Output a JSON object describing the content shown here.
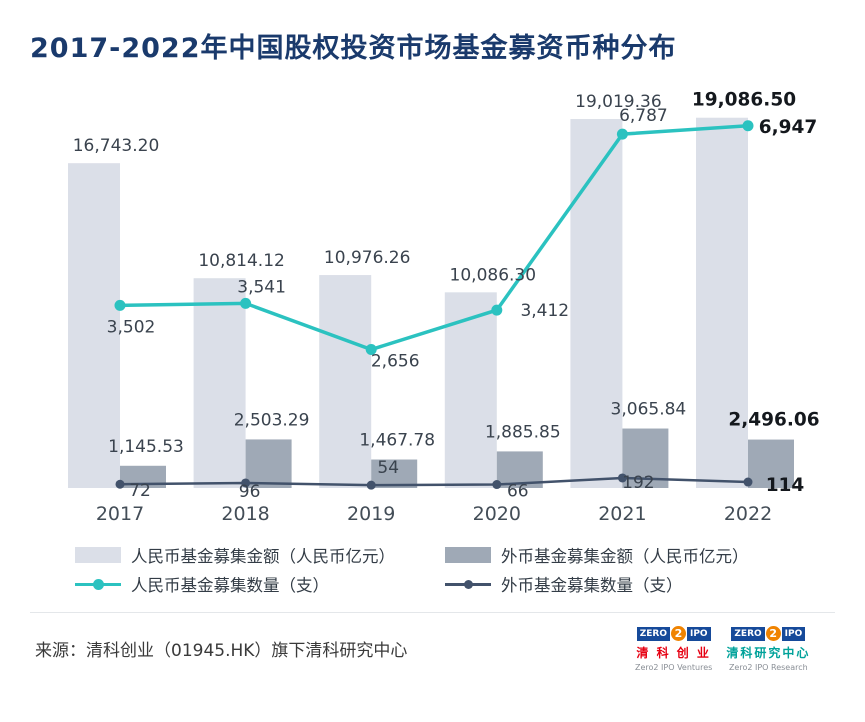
{
  "title": "2017-2022年中国股权投资市场基金募资币种分布",
  "colors": {
    "title": "#1a3a6c",
    "rmb_bar": "#dbdfe8",
    "fx_bar": "#9fa9b6",
    "rmb_line": "#2bc2c0",
    "fx_line": "#42526b"
  },
  "chart_data": {
    "type": "combo-bar-line",
    "categories": [
      "2017",
      "2018",
      "2019",
      "2020",
      "2021",
      "2022"
    ],
    "bar_series": [
      {
        "name": "人民币基金募集金额（人民币亿元）",
        "values": [
          16743.2,
          10814.12,
          10976.26,
          10086.3,
          19019.36,
          19086.5
        ],
        "labels": [
          "16,743.20",
          "10,814.12",
          "10,976.26",
          "10,086.30",
          "19,019.36",
          "19,086.50"
        ],
        "color": "#dbdfe8"
      },
      {
        "name": "外币基金募集金额（人民币亿元）",
        "values": [
          1145.53,
          2503.29,
          1467.78,
          1885.85,
          3065.84,
          2496.06
        ],
        "labels": [
          "1,145.53",
          "2,503.29",
          "1,467.78",
          "1,885.85",
          "3,065.84",
          "2,496.06"
        ],
        "color": "#9fa9b6"
      }
    ],
    "line_series": [
      {
        "name": "人民币基金募集数量（支）",
        "values": [
          3502,
          3541,
          2656,
          3412,
          6787,
          6947
        ],
        "labels": [
          "3,502",
          "3,541",
          "2,656",
          "3,412",
          "6,787",
          "6,947"
        ],
        "color": "#2bc2c0"
      },
      {
        "name": "外币基金募集数量（支）",
        "values": [
          72,
          96,
          54,
          66,
          192,
          114
        ],
        "labels": [
          "72",
          "96",
          "54",
          "66",
          "192",
          "114"
        ],
        "color": "#42526b"
      }
    ],
    "bar_axis_max": 20000,
    "count_axis_max": 7000,
    "grid": false,
    "axes_hidden": true,
    "legend_position": "bottom",
    "emphasized_category": "2022"
  },
  "footer": {
    "source": "来源：清科创业（01945.HK）旗下清科研究中心",
    "logos": [
      {
        "brand_zero": "ZERO",
        "brand_two": "2",
        "brand_ipo": "IPO",
        "cn": "清 科 创 业",
        "en": "Zero2 IPO Ventures"
      },
      {
        "brand_zero": "ZERO",
        "brand_two": "2",
        "brand_ipo": "IPO",
        "cn": "清科研究中心",
        "en": "Zero2 IPO Research"
      }
    ]
  }
}
